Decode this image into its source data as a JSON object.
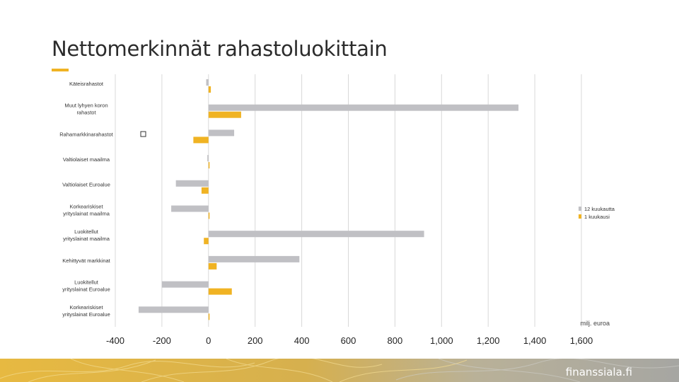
{
  "slide": {
    "title": "Nettomerkinnät rahastoluokittain",
    "brand": "finanssiala.fi"
  },
  "colors": {
    "series_12m": "#c0c0c4",
    "series_1m": "#f0b323",
    "title": "#2b2b2b",
    "footer_gold": "#d9ae3a",
    "footer_grey": "#a9a9a4"
  },
  "chart_data": {
    "type": "bar",
    "orientation": "horizontal",
    "categories": [
      "Käteisrahastot",
      "Muut lyhyen koron rahastot",
      "Rahamarkkinarahastot",
      "Valtiolaiset maailma",
      "Valtiolaiset Euroalue",
      "Korkeariskiset yrityslainat maailma",
      "Luokitellut yrityslainat maailma",
      "Kehittyvät markkinat",
      "Luokitellut yrityslainat Euroalue",
      "Korkeariskiset yrityslainat Euroalue"
    ],
    "series": [
      {
        "name": "12 kuukautta",
        "color": "#c0c0c4",
        "values": [
          -10,
          1330,
          110,
          -5,
          -140,
          -160,
          925,
          390,
          -200,
          -300
        ]
      },
      {
        "name": "1 kuukausi",
        "color": "#f0b323",
        "values": [
          10,
          140,
          -65,
          0,
          -30,
          0,
          -20,
          35,
          100,
          0
        ]
      }
    ],
    "xlim": [
      -400,
      1600
    ],
    "xticks": [
      "-400",
      "-200",
      "0",
      "200",
      "400",
      "600",
      "800",
      "1,000",
      "1,200",
      "1,400",
      "1,600"
    ],
    "unit_label": "milj. euroa",
    "grid": true,
    "legend_position": "right"
  }
}
